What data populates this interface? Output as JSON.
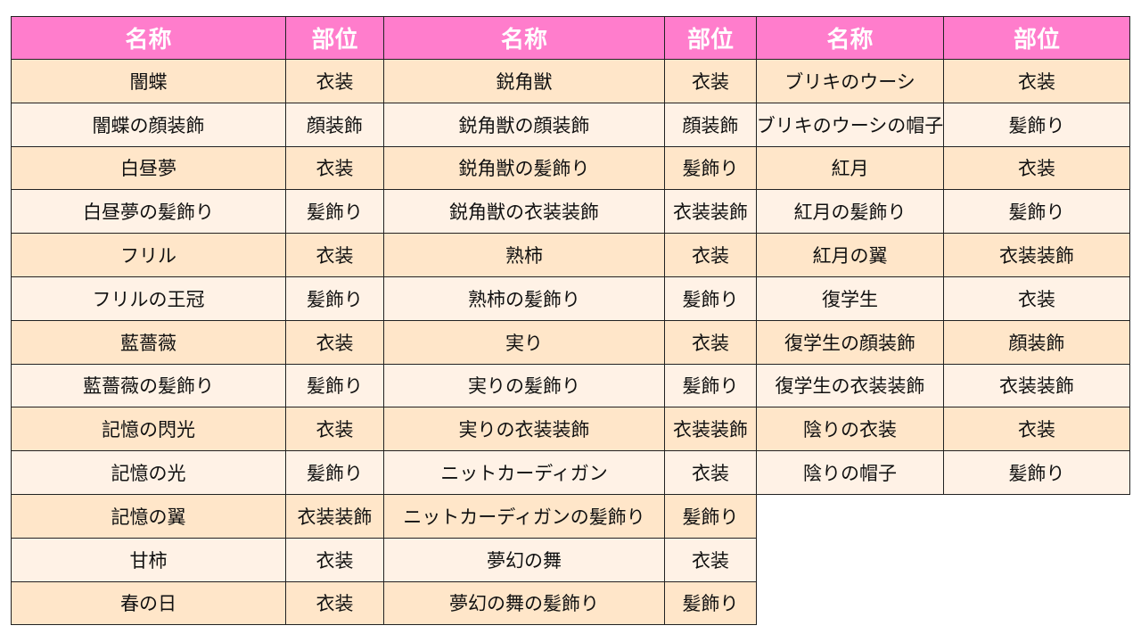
{
  "colors": {
    "header_bg": "#ff7dcc",
    "row_odd": "#ffe6c9",
    "row_even": "#fff2e6"
  },
  "headers": [
    "名称",
    "部位",
    "名称",
    "部位",
    "名称",
    "部位"
  ],
  "groups": [
    [
      [
        "闇蝶",
        "衣装"
      ],
      [
        "闇蝶の顔装飾",
        "顔装飾"
      ],
      [
        "白昼夢",
        "衣装"
      ],
      [
        "白昼夢の髪飾り",
        "髪飾り"
      ],
      [
        "フリル",
        "衣装"
      ],
      [
        "フリルの王冠",
        "髪飾り"
      ],
      [
        "藍薔薇",
        "衣装"
      ],
      [
        "藍薔薇の髪飾り",
        "髪飾り"
      ],
      [
        "記憶の閃光",
        "衣装"
      ],
      [
        "記憶の光",
        "髪飾り"
      ],
      [
        "記憶の翼",
        "衣装装飾"
      ],
      [
        "甘柿",
        "衣装"
      ],
      [
        "春の日",
        "衣装"
      ]
    ],
    [
      [
        "鋭角獣",
        "衣装"
      ],
      [
        "鋭角獣の顔装飾",
        "顔装飾"
      ],
      [
        "鋭角獣の髪飾り",
        "髪飾り"
      ],
      [
        "鋭角獣の衣装装飾",
        "衣装装飾"
      ],
      [
        "熟柿",
        "衣装"
      ],
      [
        "熟柿の髪飾り",
        "髪飾り"
      ],
      [
        "実り",
        "衣装"
      ],
      [
        "実りの髪飾り",
        "髪飾り"
      ],
      [
        "実りの衣装装飾",
        "衣装装飾"
      ],
      [
        "ニットカーディガン",
        "衣装"
      ],
      [
        "ニットカーディガンの髪飾り",
        "髪飾り"
      ],
      [
        "夢幻の舞",
        "衣装"
      ],
      [
        "夢幻の舞の髪飾り",
        "髪飾り"
      ]
    ],
    [
      [
        "ブリキのウーシ",
        "衣装"
      ],
      [
        "ブリキのウーシの帽子",
        "髪飾り"
      ],
      [
        "紅月",
        "衣装"
      ],
      [
        "紅月の髪飾り",
        "髪飾り"
      ],
      [
        "紅月の翼",
        "衣装装飾"
      ],
      [
        "復学生",
        "衣装"
      ],
      [
        "復学生の顔装飾",
        "顔装飾"
      ],
      [
        "復学生の衣装装飾",
        "衣装装飾"
      ],
      [
        "陰りの衣装",
        "衣装"
      ],
      [
        "陰りの帽子",
        "髪飾り"
      ]
    ]
  ]
}
